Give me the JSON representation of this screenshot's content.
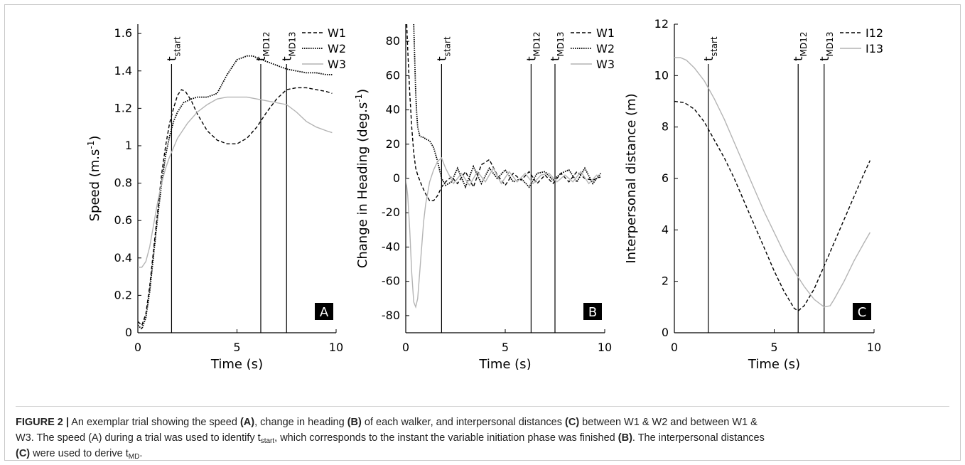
{
  "chart_data": [
    {
      "type": "line",
      "panel_label": "A",
      "xlabel": "Time (s)",
      "ylabel": "Speed (m.s-1)",
      "ylabel_main": "Speed (m.s",
      "ylabel_sup": "-1",
      "ylabel_end": ")",
      "xlim": [
        0,
        10
      ],
      "ylim": [
        0,
        1.65
      ],
      "xticks": [
        0,
        5,
        10
      ],
      "xtick_labels": [
        "0",
        "5",
        "10"
      ],
      "yticks": [
        0,
        0.2,
        0.4,
        0.6,
        0.8,
        1,
        1.2,
        1.4,
        1.6
      ],
      "ytick_labels": [
        "0",
        "0.2",
        "0.4",
        "0.6",
        "0.8",
        "1",
        "1.2",
        "1.4",
        "1.6"
      ],
      "vlines": [
        {
          "x": 1.7,
          "label_base": "t",
          "label_sub": "start"
        },
        {
          "x": 6.2,
          "label_base": "t",
          "label_sub": "MD12"
        },
        {
          "x": 7.5,
          "label_base": "t",
          "label_sub": "MD13"
        }
      ],
      "legend": [
        "W1",
        "W2",
        "W3"
      ],
      "series": [
        {
          "name": "W1",
          "style": "dashed",
          "color": "#000000",
          "x": [
            0,
            0.2,
            0.4,
            0.6,
            0.8,
            1.0,
            1.2,
            1.4,
            1.6,
            1.8,
            2.0,
            2.2,
            2.4,
            2.7,
            3.0,
            3.5,
            4.0,
            4.5,
            5.0,
            5.5,
            6.0,
            6.5,
            7.0,
            7.5,
            8.0,
            8.5,
            9.0,
            9.5,
            9.8
          ],
          "y": [
            0.06,
            0.04,
            0.1,
            0.25,
            0.45,
            0.65,
            0.85,
            1.0,
            1.12,
            1.2,
            1.27,
            1.3,
            1.29,
            1.24,
            1.17,
            1.08,
            1.03,
            1.01,
            1.01,
            1.04,
            1.1,
            1.18,
            1.25,
            1.3,
            1.31,
            1.31,
            1.3,
            1.29,
            1.28
          ]
        },
        {
          "name": "W2",
          "style": "dotted",
          "color": "#000000",
          "x": [
            0,
            0.2,
            0.4,
            0.6,
            0.8,
            1.0,
            1.2,
            1.4,
            1.6,
            1.8,
            2.0,
            2.3,
            2.7,
            3.0,
            3.5,
            4.0,
            4.5,
            5.0,
            5.5,
            5.8,
            6.0,
            6.5,
            7.0,
            7.5,
            8.0,
            8.5,
            9.0,
            9.5,
            9.8
          ],
          "y": [
            0.04,
            0.02,
            0.08,
            0.22,
            0.42,
            0.62,
            0.8,
            0.95,
            1.05,
            1.13,
            1.18,
            1.23,
            1.25,
            1.26,
            1.26,
            1.28,
            1.38,
            1.46,
            1.48,
            1.48,
            1.47,
            1.45,
            1.43,
            1.41,
            1.4,
            1.39,
            1.39,
            1.38,
            1.38
          ]
        },
        {
          "name": "W3",
          "style": "solid",
          "color": "#b4b4b4",
          "x": [
            0,
            0.2,
            0.4,
            0.6,
            0.8,
            1.0,
            1.2,
            1.4,
            1.6,
            1.8,
            2.0,
            2.5,
            3.0,
            3.5,
            4.0,
            4.5,
            5.0,
            5.5,
            6.0,
            6.5,
            7.0,
            7.5,
            8.0,
            8.5,
            9.0,
            9.5,
            9.8
          ],
          "y": [
            0.35,
            0.35,
            0.38,
            0.46,
            0.58,
            0.7,
            0.8,
            0.88,
            0.94,
            0.99,
            1.04,
            1.12,
            1.18,
            1.22,
            1.25,
            1.26,
            1.26,
            1.26,
            1.25,
            1.24,
            1.23,
            1.22,
            1.18,
            1.13,
            1.1,
            1.08,
            1.07
          ]
        }
      ]
    },
    {
      "type": "line",
      "panel_label": "B",
      "xlabel": "Time (s)",
      "ylabel": "Change in Heading (deg.s-1)",
      "ylabel_main": "Change in Heading (deg.s",
      "ylabel_sup": "-1",
      "ylabel_end": ")",
      "xlim": [
        0,
        10
      ],
      "ylim": [
        -90,
        90
      ],
      "xticks": [
        0,
        5,
        10
      ],
      "xtick_labels": [
        "0",
        "5",
        "10"
      ],
      "yticks": [
        -80,
        -60,
        -40,
        -20,
        0,
        20,
        40,
        60,
        80
      ],
      "ytick_labels": [
        "-80",
        "-60",
        "-40",
        "-20",
        "0",
        "20",
        "40",
        "60",
        "80"
      ],
      "vlines": [
        {
          "x": 1.8,
          "label_base": "t",
          "label_sub": "start"
        },
        {
          "x": 6.3,
          "label_base": "t",
          "label_sub": "MD12"
        },
        {
          "x": 7.5,
          "label_base": "t",
          "label_sub": "MD13"
        }
      ],
      "legend": [
        "W1",
        "W2",
        "W3"
      ],
      "series": [
        {
          "name": "W1",
          "style": "dashed",
          "color": "#000000",
          "x": [
            0.05,
            0.1,
            0.2,
            0.3,
            0.4,
            0.5,
            0.6,
            0.8,
            1.0,
            1.2,
            1.4,
            1.6,
            1.8,
            2.0,
            2.3,
            2.6,
            3.0,
            3.4,
            3.8,
            4.2,
            4.6,
            5.0,
            5.4,
            5.8,
            6.2,
            6.6,
            7.0,
            7.4,
            7.8,
            8.2,
            8.6,
            9.0,
            9.4,
            9.8
          ],
          "y": [
            90,
            75,
            50,
            30,
            15,
            6,
            2,
            -4,
            -9,
            -13,
            -13,
            -10,
            -5,
            -2,
            1,
            -3,
            4,
            -5,
            8,
            11,
            2,
            -4,
            3,
            -1,
            4,
            -3,
            2,
            -3,
            3,
            -2,
            4,
            0,
            -1,
            1
          ]
        },
        {
          "name": "W2",
          "style": "dotted",
          "color": "#000000",
          "x": [
            0.4,
            0.45,
            0.5,
            0.55,
            0.6,
            0.7,
            0.8,
            0.9,
            1.0,
            1.2,
            1.4,
            1.6,
            1.8,
            2.0,
            2.3,
            2.6,
            3.0,
            3.4,
            3.8,
            4.2,
            4.6,
            5.0,
            5.4,
            5.8,
            6.2,
            6.6,
            7.0,
            7.4,
            7.8,
            8.2,
            8.6,
            9.0,
            9.4,
            9.8
          ],
          "y": [
            90,
            70,
            50,
            38,
            30,
            25,
            24,
            24,
            23,
            22,
            18,
            10,
            0,
            -4,
            -2,
            6,
            -5,
            7,
            -3,
            6,
            0,
            5,
            -2,
            0,
            -5,
            3,
            4,
            -1,
            3,
            5,
            -2,
            6,
            -3,
            3
          ]
        },
        {
          "name": "W3",
          "style": "solid",
          "color": "#b4b4b4",
          "x": [
            0.0,
            0.1,
            0.2,
            0.3,
            0.4,
            0.5,
            0.6,
            0.7,
            0.8,
            0.9,
            1.0,
            1.2,
            1.4,
            1.6,
            1.8,
            2.0,
            2.4,
            2.8,
            3.2,
            3.6,
            4.0,
            4.4,
            4.8,
            5.2,
            5.6,
            6.0,
            6.4,
            6.8,
            7.2,
            7.6,
            8.0,
            8.4,
            8.8,
            9.2,
            9.6,
            9.8
          ],
          "y": [
            0,
            -10,
            -30,
            -55,
            -72,
            -75,
            -70,
            -55,
            -40,
            -25,
            -15,
            -2,
            5,
            10,
            12,
            6,
            -3,
            3,
            -4,
            4,
            -2,
            6,
            -3,
            4,
            -2,
            3,
            -3,
            2,
            3,
            -2,
            2,
            -2,
            4,
            -3,
            2,
            1
          ]
        }
      ]
    },
    {
      "type": "line",
      "panel_label": "C",
      "xlabel": "Time (s)",
      "ylabel": "Interpersonal distance (m)",
      "ylabel_main": "Interpersonal distance (m)",
      "ylabel_sup": "",
      "ylabel_end": "",
      "xlim": [
        0,
        10
      ],
      "ylim": [
        0,
        12
      ],
      "xticks": [
        0,
        5,
        10
      ],
      "xtick_labels": [
        "0",
        "5",
        "10"
      ],
      "yticks": [
        0,
        2,
        4,
        6,
        8,
        10,
        12
      ],
      "ytick_labels": [
        "0",
        "2",
        "4",
        "6",
        "8",
        "10",
        "12"
      ],
      "vlines": [
        {
          "x": 1.7,
          "label_base": "t",
          "label_sub": "start"
        },
        {
          "x": 6.2,
          "label_base": "t",
          "label_sub": "MD12"
        },
        {
          "x": 7.5,
          "label_base": "t",
          "label_sub": "MD13"
        }
      ],
      "legend": [
        "I12",
        "I13"
      ],
      "series": [
        {
          "name": "I12",
          "style": "dashed",
          "color": "#000000",
          "x": [
            0,
            0.5,
            1.0,
            1.5,
            2.0,
            2.5,
            3.0,
            3.5,
            4.0,
            4.5,
            5.0,
            5.5,
            6.0,
            6.2,
            6.5,
            7.0,
            7.5,
            8.0,
            8.5,
            9.0,
            9.5,
            9.8
          ],
          "y": [
            9.0,
            8.95,
            8.7,
            8.2,
            7.5,
            6.8,
            6.0,
            5.1,
            4.2,
            3.3,
            2.4,
            1.6,
            0.95,
            0.85,
            1.05,
            1.7,
            2.6,
            3.5,
            4.4,
            5.3,
            6.2,
            6.7
          ]
        },
        {
          "name": "I13",
          "style": "solid",
          "color": "#b4b4b4",
          "x": [
            0,
            0.3,
            0.6,
            1.0,
            1.5,
            2.0,
            2.5,
            3.0,
            3.5,
            4.0,
            4.5,
            5.0,
            5.5,
            6.0,
            6.5,
            7.0,
            7.5,
            7.8,
            8.0,
            8.5,
            9.0,
            9.5,
            9.8
          ],
          "y": [
            10.7,
            10.7,
            10.6,
            10.3,
            9.8,
            9.1,
            8.3,
            7.4,
            6.5,
            5.6,
            4.7,
            3.9,
            3.1,
            2.4,
            1.8,
            1.3,
            1.0,
            1.05,
            1.3,
            2.0,
            2.8,
            3.5,
            3.9
          ]
        }
      ]
    }
  ],
  "caption": {
    "line1_label": "FIGURE 2 |",
    "line1_a": " An exemplar trial showing the speed ",
    "line1_b": "(A)",
    "line1_c": ", change in heading ",
    "line1_d": "(B)",
    "line1_e": " of each walker, and interpersonal distances ",
    "line1_f": "(C)",
    "line1_g": " between W1 & W2 and between W1 &",
    "line2_a": "W3. The speed (A) during a trial was used to identify t",
    "line2_sub": "start",
    "line2_b": ", which corresponds to the instant the variable initiation phase was finished ",
    "line2_c": "(B)",
    "line2_d": ". The interpersonal distances",
    "line3_a": "(C)",
    "line3_b": " were used to derive t",
    "line3_sub": "MD",
    "line3_c": "."
  }
}
